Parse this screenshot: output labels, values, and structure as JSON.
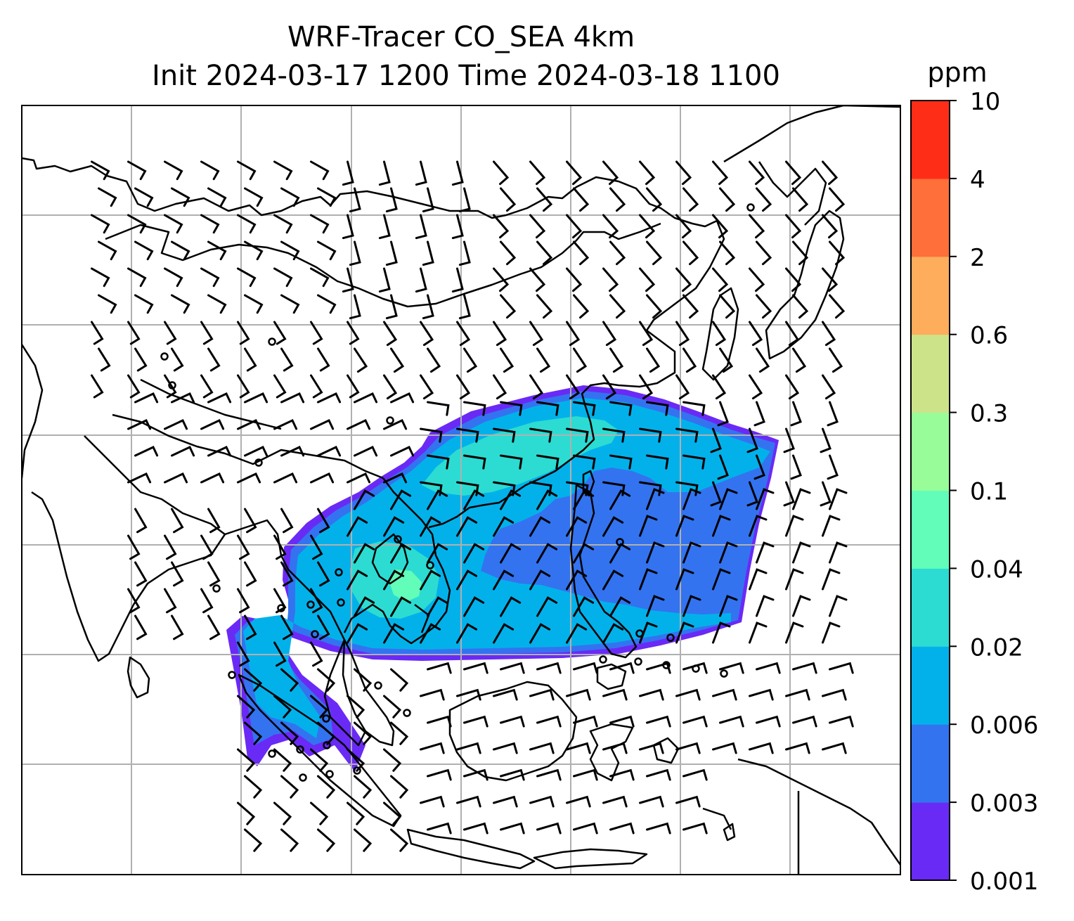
{
  "title": {
    "line1": "WRF-Tracer CO_SEA 4km",
    "line2": "Init 2024-03-17 1200 Time 2024-03-18 1100"
  },
  "colorbar": {
    "unit": "ppm",
    "levels": [
      "0.001",
      "0.003",
      "0.006",
      "0.02",
      "0.04",
      "0.1",
      "0.3",
      "0.6",
      "2",
      "4",
      "10"
    ],
    "colors": [
      "#6a2af5",
      "#3373f0",
      "#03b1ea",
      "#2cdcd2",
      "#61fdb9",
      "#98fc98",
      "#cde38a",
      "#fead5c",
      "#fe6f3a",
      "#fe2d17"
    ]
  },
  "map": {
    "gridlines": true,
    "gridline_color": "#b0b0b0",
    "coastline_color": "#000000",
    "wind_barbs": true
  }
}
